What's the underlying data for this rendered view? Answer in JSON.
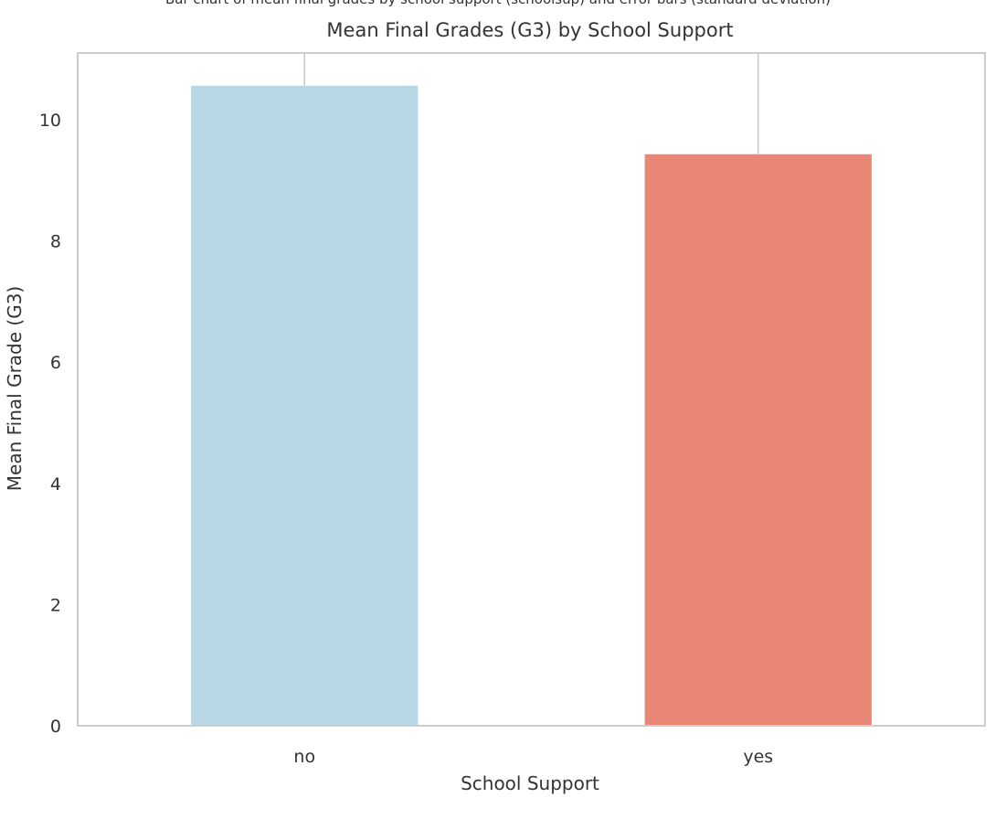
{
  "page": {
    "clipped_caption": "Bar chart of mean final grades by school support (schoolsup) and error bars (standard deviation)"
  },
  "chart_data": {
    "type": "bar",
    "title": "Mean Final Grades (G3) by School Support",
    "xlabel": "School Support",
    "ylabel": "Mean Final Grade (G3)",
    "categories": [
      "no",
      "yes"
    ],
    "values": [
      10.56,
      9.43
    ],
    "error_upper": [
      11.6,
      11.6
    ],
    "ylim": [
      0,
      11.1
    ],
    "yticks": [
      0,
      2,
      4,
      6,
      8,
      10
    ],
    "bar_colors": [
      "#b6d7e3",
      "#e98676"
    ],
    "error_color": "#c8c8c8",
    "frame_color": "#cccccc",
    "grid": false,
    "legend": "none"
  }
}
